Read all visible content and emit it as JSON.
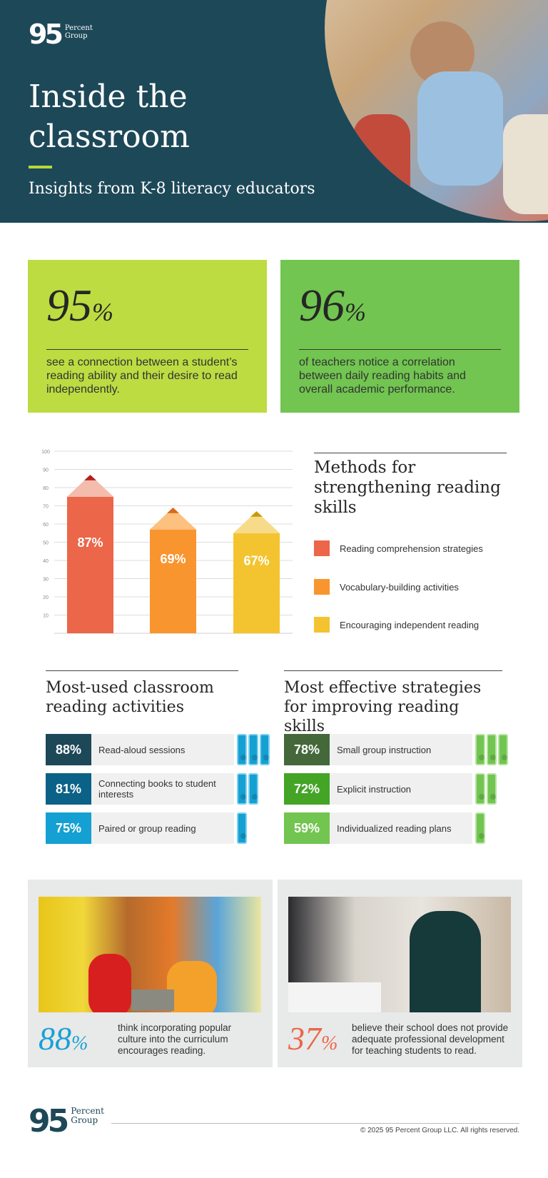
{
  "header": {
    "logo_number": "95",
    "logo_text_1": "Percent",
    "logo_text_2": "Group",
    "title_line1": "Inside the",
    "title_line2": "classroom",
    "subtitle": "Insights from K-8 literacy educators"
  },
  "stats": [
    {
      "value": "95",
      "unit": "%",
      "text": "see a connection between a student’s reading ability and their desire to read independently.",
      "color": "#bcdc41"
    },
    {
      "value": "96",
      "unit": "%",
      "text": "of teachers notice a correlation between daily reading habits and overall academic performance.",
      "color": "#71c550"
    }
  ],
  "chart_data": {
    "type": "bar",
    "title": "Methods for strengthening reading skills",
    "categories": [
      "Reading comprehension strategies",
      "Vocabulary-building activities",
      "Encouraging independent reading"
    ],
    "values": [
      87,
      69,
      67
    ],
    "labels": [
      "87%",
      "69%",
      "67%"
    ],
    "colors": [
      "#ec6649",
      "#f9952f",
      "#f4c430"
    ],
    "tip_colors": [
      "#f4bcad",
      "#fcc07f",
      "#f6dc8a"
    ],
    "lead_colors": [
      "#b02022",
      "#d8691a",
      "#c99a06"
    ],
    "yticks": [
      10,
      20,
      30,
      40,
      50,
      60,
      70,
      80,
      90,
      100
    ],
    "ylim": [
      0,
      100
    ],
    "grid": true,
    "legend": "right"
  },
  "activities": {
    "title": "Most-used classroom reading activities",
    "items": [
      {
        "pct": "88%",
        "label": "Read-aloud sessions",
        "color": "#1d4858",
        "books": 3
      },
      {
        "pct": "81%",
        "label": "Connecting books to student interests",
        "color": "#0b6286",
        "books": 2
      },
      {
        "pct": "75%",
        "label": "Paired or group reading",
        "color": "#14a0d2",
        "books": 1
      }
    ],
    "book_color": "#14a0d2",
    "book_border": "#7fcff0"
  },
  "strategies": {
    "title": "Most effective strategies for improving reading skills",
    "items": [
      {
        "pct": "78%",
        "label": "Small group instruction",
        "color": "#44683a",
        "books": 3
      },
      {
        "pct": "72%",
        "label": "Explicit instruction",
        "color": "#43a426",
        "books": 2
      },
      {
        "pct": "59%",
        "label": "Individualized reading plans",
        "color": "#72c550",
        "books": 1
      }
    ],
    "book_color": "#72c550",
    "book_border": "#b6e4a3"
  },
  "cards": [
    {
      "value": "88",
      "unit": "%",
      "text": "think incorporating popular culture into the curriculum encourages reading.",
      "color": "#1ba0d6"
    },
    {
      "value": "37",
      "unit": "%",
      "text": "believe their school does not provide adequate professional development for teaching students to read.",
      "color": "#ec6649"
    }
  ],
  "footer": {
    "logo_number": "95",
    "logo_text_1": "Percent",
    "logo_text_2": "Group",
    "copyright": "© 2025 95 Percent Group LLC. All rights reserved."
  }
}
